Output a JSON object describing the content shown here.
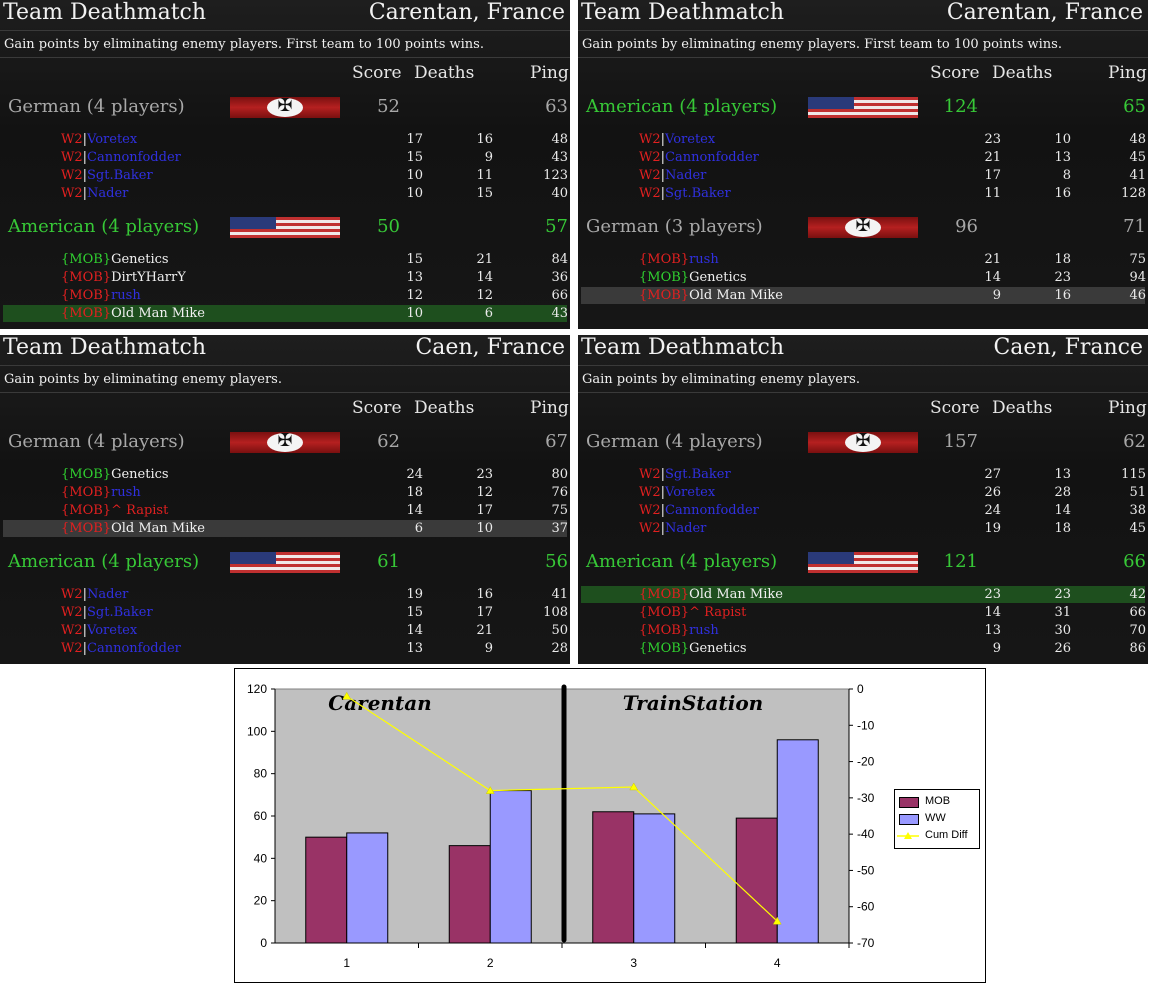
{
  "panels": [
    {
      "title": "Team Deathmatch",
      "map": "Carentan, France",
      "description": "Gain points by eliminating enemy players. First team to 100 points wins.",
      "headers": {
        "score": "Score",
        "deaths": "Deaths",
        "ping": "Ping"
      },
      "teams": [
        {
          "name": "German (4 players)",
          "side": "german",
          "score": "52",
          "ping": "63",
          "players": [
            {
              "tag": "W2",
              "name": "Voretex",
              "score": "17",
              "deaths": "16",
              "ping": "48"
            },
            {
              "tag": "W2",
              "name": "Cannonfodder",
              "score": "15",
              "deaths": "9",
              "ping": "43"
            },
            {
              "tag": "W2",
              "name": "Sgt.Baker",
              "score": "10",
              "deaths": "11",
              "ping": "123"
            },
            {
              "tag": "W2",
              "name": "Nader",
              "score": "10",
              "deaths": "15",
              "ping": "40"
            }
          ]
        },
        {
          "name": "American (4 players)",
          "side": "american",
          "score": "50",
          "ping": "57",
          "players": [
            {
              "tag": "{MOB}",
              "name": "Genetics",
              "score": "15",
              "deaths": "21",
              "ping": "84"
            },
            {
              "tag": "{MOB}",
              "name": "DirtYHarrY",
              "score": "13",
              "deaths": "14",
              "ping": "36"
            },
            {
              "tag": "{MOB}",
              "name": "rush",
              "score": "12",
              "deaths": "12",
              "ping": "66"
            },
            {
              "tag": "{MOB}",
              "name": "Old Man Mike",
              "score": "10",
              "deaths": "6",
              "ping": "43",
              "highlight": "green"
            }
          ]
        }
      ]
    },
    {
      "title": "Team Deathmatch",
      "map": "Carentan, France",
      "description": "Gain points by eliminating enemy players. First team to 100 points wins.",
      "headers": {
        "score": "Score",
        "deaths": "Deaths",
        "ping": "Ping"
      },
      "teams": [
        {
          "name": "American (4 players)",
          "side": "american",
          "score": "124",
          "ping": "65",
          "players": [
            {
              "tag": "W2",
              "name": "Voretex",
              "score": "23",
              "deaths": "10",
              "ping": "48"
            },
            {
              "tag": "W2",
              "name": "Cannonfodder",
              "score": "21",
              "deaths": "13",
              "ping": "45"
            },
            {
              "tag": "W2",
              "name": "Nader",
              "score": "17",
              "deaths": "8",
              "ping": "41"
            },
            {
              "tag": "W2",
              "name": "Sgt.Baker",
              "score": "11",
              "deaths": "16",
              "ping": "128"
            }
          ]
        },
        {
          "name": "German (3 players)",
          "side": "german",
          "score": "96",
          "ping": "71",
          "players": [
            {
              "tag": "{MOB}",
              "name": "rush",
              "score": "21",
              "deaths": "18",
              "ping": "75"
            },
            {
              "tag": "{MOB}",
              "name": "Genetics",
              "score": "14",
              "deaths": "23",
              "ping": "94"
            },
            {
              "tag": "{MOB}",
              "name": "Old Man Mike",
              "score": "9",
              "deaths": "16",
              "ping": "46",
              "highlight": "grey"
            }
          ]
        }
      ]
    },
    {
      "title": "Team Deathmatch",
      "map": "Caen, France",
      "description": "Gain points by eliminating enemy players.",
      "headers": {
        "score": "Score",
        "deaths": "Deaths",
        "ping": "Ping"
      },
      "teams": [
        {
          "name": "German (4 players)",
          "side": "german",
          "score": "62",
          "ping": "67",
          "players": [
            {
              "tag": "{MOB}",
              "name": "Genetics",
              "score": "24",
              "deaths": "23",
              "ping": "80"
            },
            {
              "tag": "{MOB}",
              "name": "rush",
              "score": "18",
              "deaths": "12",
              "ping": "76"
            },
            {
              "tag": "{MOB}",
              "name": "^ Rapist",
              "score": "14",
              "deaths": "17",
              "ping": "75"
            },
            {
              "tag": "{MOB}",
              "name": "Old Man Mike",
              "score": "6",
              "deaths": "10",
              "ping": "37",
              "highlight": "grey"
            }
          ]
        },
        {
          "name": "American (4 players)",
          "side": "american",
          "score": "61",
          "ping": "56",
          "players": [
            {
              "tag": "W2",
              "name": "Nader",
              "score": "19",
              "deaths": "16",
              "ping": "41"
            },
            {
              "tag": "W2",
              "name": "Sgt.Baker",
              "score": "15",
              "deaths": "17",
              "ping": "108"
            },
            {
              "tag": "W2",
              "name": "Voretex",
              "score": "14",
              "deaths": "21",
              "ping": "50"
            },
            {
              "tag": "W2",
              "name": "Cannonfodder",
              "score": "13",
              "deaths": "9",
              "ping": "28"
            }
          ]
        }
      ]
    },
    {
      "title": "Team Deathmatch",
      "map": "Caen, France",
      "description": "Gain points by eliminating enemy players.",
      "headers": {
        "score": "Score",
        "deaths": "Deaths",
        "ping": "Ping"
      },
      "teams": [
        {
          "name": "German (4 players)",
          "side": "german",
          "score": "157",
          "ping": "62",
          "players": [
            {
              "tag": "W2",
              "name": "Sgt.Baker",
              "score": "27",
              "deaths": "13",
              "ping": "115"
            },
            {
              "tag": "W2",
              "name": "Voretex",
              "score": "26",
              "deaths": "28",
              "ping": "51"
            },
            {
              "tag": "W2",
              "name": "Cannonfodder",
              "score": "24",
              "deaths": "14",
              "ping": "38"
            },
            {
              "tag": "W2",
              "name": "Nader",
              "score": "19",
              "deaths": "18",
              "ping": "45"
            }
          ]
        },
        {
          "name": "American (4 players)",
          "side": "american",
          "score": "121",
          "ping": "66",
          "players": [
            {
              "tag": "{MOB}",
              "name": "Old Man Mike",
              "score": "23",
              "deaths": "23",
              "ping": "42",
              "highlight": "green"
            },
            {
              "tag": "{MOB}",
              "name": "^ Rapist",
              "score": "14",
              "deaths": "31",
              "ping": "66"
            },
            {
              "tag": "{MOB}",
              "name": "rush",
              "score": "13",
              "deaths": "30",
              "ping": "70"
            },
            {
              "tag": "{MOB}",
              "name": "Genetics",
              "score": "9",
              "deaths": "26",
              "ping": "86"
            }
          ]
        }
      ]
    }
  ],
  "chart_data": {
    "type": "bar",
    "categories": [
      "1",
      "2",
      "3",
      "4"
    ],
    "series": [
      {
        "name": "MOB",
        "type": "bar",
        "axis": "left",
        "color": "#993366",
        "values": [
          50,
          46,
          62,
          59
        ]
      },
      {
        "name": "WW",
        "type": "bar",
        "axis": "left",
        "color": "#9999ff",
        "values": [
          52,
          72,
          61,
          96
        ]
      },
      {
        "name": "Cum Diff",
        "type": "line",
        "axis": "right",
        "color": "#ffff00",
        "values": [
          -2,
          -28,
          -27,
          -64
        ]
      }
    ],
    "ylim": [
      0,
      120
    ],
    "y2lim": [
      -70,
      0
    ],
    "yticks": [
      "120",
      "100",
      "80",
      "60",
      "40",
      "20",
      "0"
    ],
    "y2ticks": [
      "0",
      "-10",
      "-20",
      "-30",
      "-40",
      "-50",
      "-60",
      "-70"
    ],
    "annotations": [
      "Carentan",
      "TrainStation"
    ],
    "plot_background": "#c0c0c0",
    "legend_position": "right",
    "grid": false
  }
}
